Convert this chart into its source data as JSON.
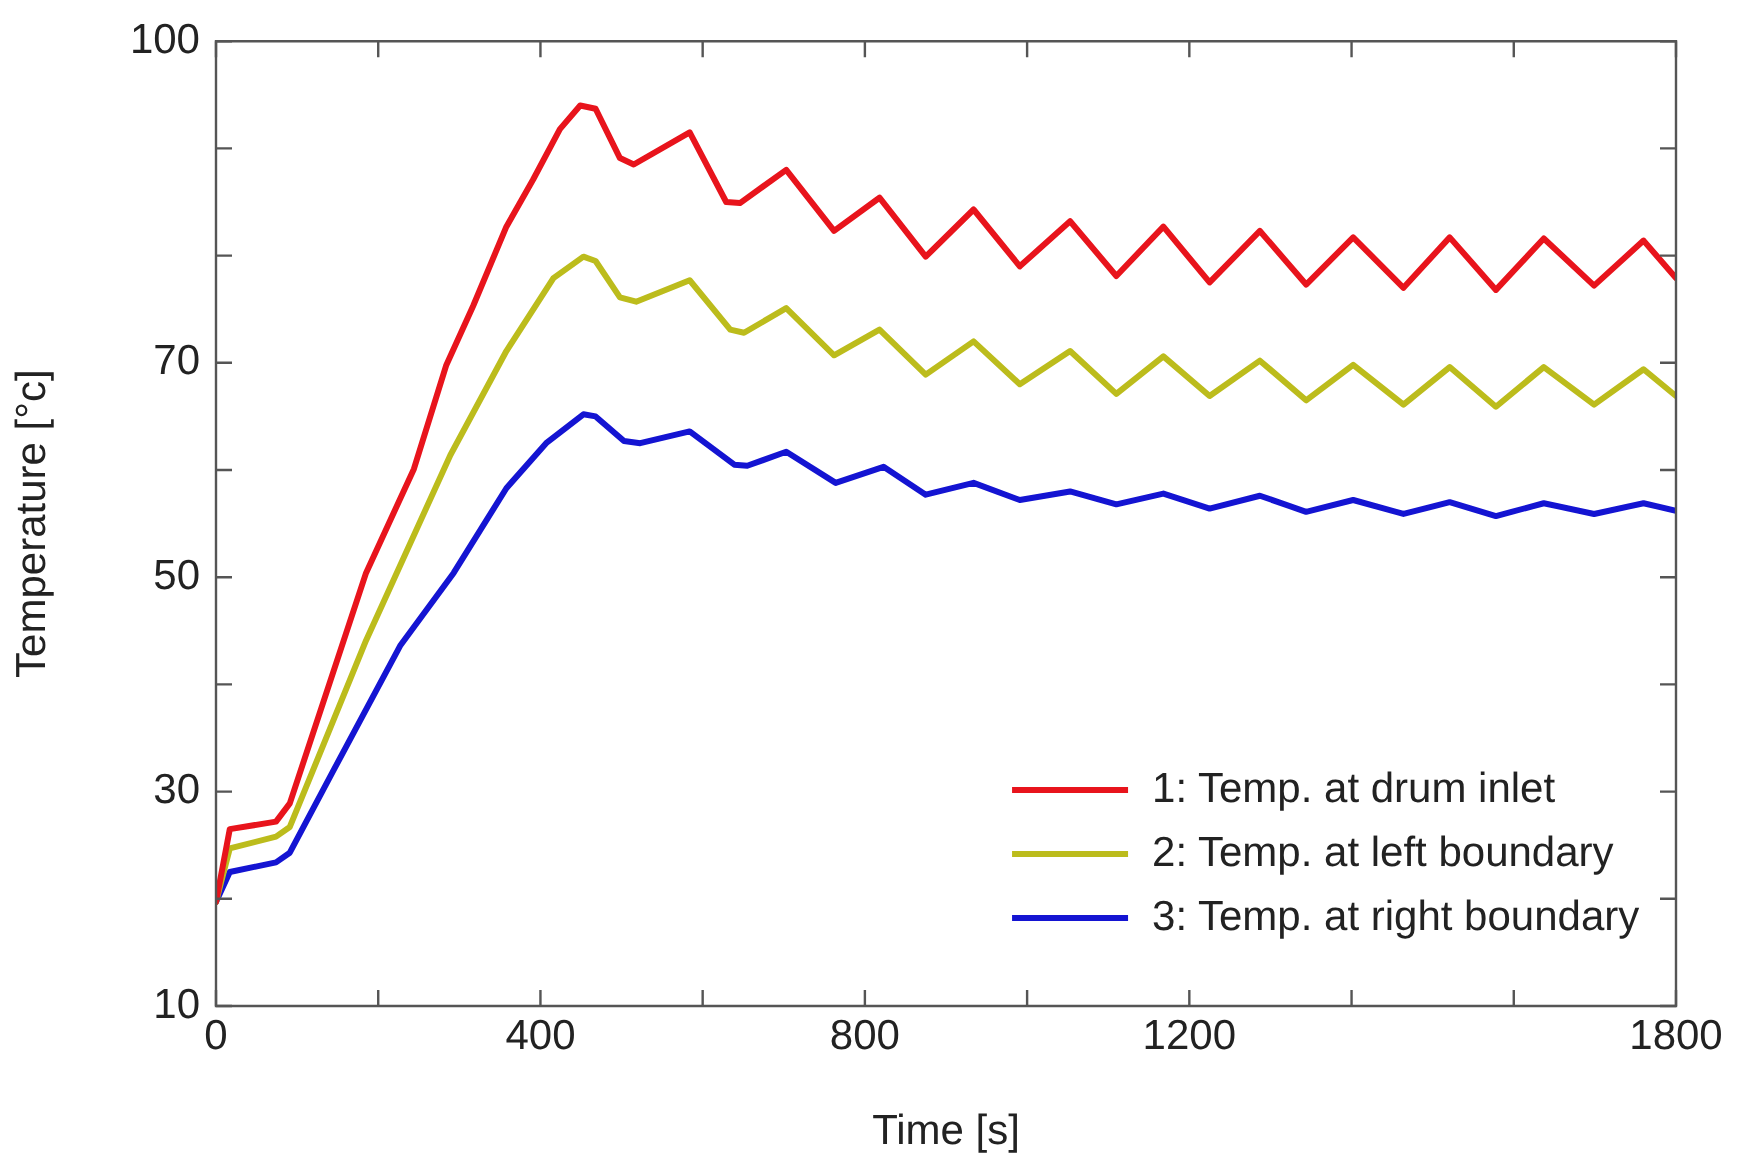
{
  "chart_data": {
    "type": "line",
    "xlabel": "Time [s]",
    "ylabel": "Temperature [°c]",
    "xlim": [
      0,
      1800
    ],
    "xticks": [
      0,
      {
        "value": 200,
        "label": null
      },
      400,
      {
        "value": 600,
        "label": null
      },
      800,
      {
        "value": 1000,
        "label": null
      },
      1200,
      {
        "value": 1400,
        "label": null
      },
      {
        "value": 1600,
        "label": null
      },
      1800
    ],
    "ylim": [
      10,
      100
    ],
    "yticks": [
      10,
      {
        "value": 20,
        "label": null
      },
      30,
      {
        "value": 40,
        "label": null
      },
      50,
      {
        "value": 60,
        "label": null
      },
      70,
      {
        "value": 80,
        "label": null
      },
      {
        "value": 90,
        "label": null
      },
      100
    ],
    "legend": "bottom right",
    "grid": false,
    "marker": "none",
    "line_style": "solid",
    "series": [
      {
        "name": "1: Temp. at drum inlet",
        "color": "#e8141c",
        "x": [
          0,
          17,
          74,
          91,
          185,
          244,
          284,
          317,
          358,
          391,
          424,
          449,
          468,
          498,
          515,
          584,
          629,
          646,
          703,
          762,
          818,
          875,
          934,
          991,
          1053,
          1110,
          1168,
          1225,
          1287,
          1344,
          1402,
          1464,
          1521,
          1578,
          1637,
          1699,
          1760,
          1800
        ],
        "values": [
          19.7,
          26.5,
          27.2,
          28.9,
          50.4,
          60.1,
          69.8,
          75.3,
          82.7,
          87.1,
          91.8,
          94.0,
          93.7,
          89.1,
          88.5,
          91.5,
          85.0,
          84.9,
          88.0,
          82.3,
          85.4,
          79.9,
          84.3,
          79.0,
          83.2,
          78.1,
          82.7,
          77.5,
          82.3,
          77.3,
          81.7,
          77.0,
          81.7,
          76.8,
          81.6,
          77.2,
          81.4,
          77.9
        ]
      },
      {
        "name": "2: Temp. at left boundary",
        "color": "#bcbc1c",
        "x": [
          0,
          17,
          74,
          91,
          185,
          289,
          358,
          416,
          453,
          468,
          498,
          518,
          584,
          634,
          651,
          703,
          762,
          818,
          875,
          934,
          991,
          1053,
          1110,
          1168,
          1225,
          1287,
          1344,
          1402,
          1464,
          1521,
          1578,
          1637,
          1699,
          1760,
          1800
        ],
        "values": [
          19.7,
          24.7,
          25.8,
          26.7,
          44.1,
          61.4,
          71.1,
          77.9,
          79.9,
          79.5,
          76.1,
          75.7,
          77.7,
          73.1,
          72.8,
          75.1,
          70.7,
          73.1,
          68.9,
          72.0,
          68.0,
          71.1,
          67.1,
          70.6,
          66.9,
          70.2,
          66.5,
          69.8,
          66.1,
          69.6,
          65.9,
          69.6,
          66.1,
          69.4,
          66.9
        ]
      },
      {
        "name": "3: Temp. at right boundary",
        "color": "#1414d2",
        "x": [
          0,
          17,
          74,
          91,
          145,
          227,
          293,
          358,
          407,
          453,
          468,
          503,
          523,
          584,
          639,
          655,
          703,
          764,
          823,
          875,
          934,
          991,
          1053,
          1110,
          1168,
          1225,
          1287,
          1344,
          1402,
          1464,
          1521,
          1578,
          1637,
          1699,
          1760,
          1800
        ],
        "values": [
          19.7,
          22.5,
          23.4,
          24.3,
          32.0,
          43.6,
          50.4,
          58.3,
          62.5,
          65.2,
          65.0,
          62.7,
          62.5,
          63.6,
          60.5,
          60.4,
          61.7,
          58.8,
          60.3,
          57.7,
          58.8,
          57.2,
          58.0,
          56.8,
          57.8,
          56.4,
          57.6,
          56.1,
          57.2,
          55.9,
          57.0,
          55.7,
          56.9,
          55.9,
          56.9,
          56.2
        ]
      }
    ]
  }
}
